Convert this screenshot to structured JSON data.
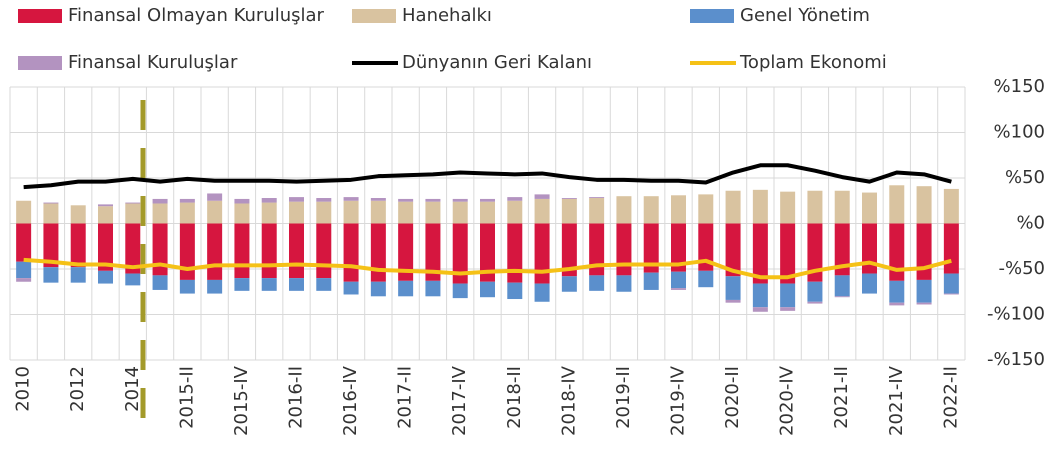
{
  "chart_data": {
    "type": "bar",
    "categories": [
      "2010",
      null,
      "2012",
      null,
      "2014",
      null,
      "2015-II",
      null,
      "2015-IV",
      null,
      "2016-II",
      null,
      "2016-IV",
      null,
      "2017-II",
      null,
      "2017-IV",
      null,
      "2018-II",
      null,
      "2018-IV",
      null,
      "2019-II",
      null,
      "2019-IV",
      null,
      "2020-II",
      null,
      "2020-IV",
      null,
      "2021-II",
      null,
      "2021-IV",
      null,
      "2022-II"
    ],
    "series": [
      {
        "name": "Finansal Olmayan Kuruluşlar",
        "type": "bar",
        "color": "#d6163f",
        "values": [
          -42,
          -48,
          -48,
          -52,
          -55,
          -57,
          -62,
          -62,
          -60,
          -60,
          -60,
          -60,
          -64,
          -64,
          -63,
          -63,
          -66,
          -64,
          -65,
          -66,
          -58,
          -57,
          -57,
          -54,
          -53,
          -52,
          -58,
          -66,
          -66,
          -64,
          -57,
          -55,
          -63,
          -62,
          -55
        ]
      },
      {
        "name": "Hanehalkı",
        "type": "bar",
        "color": "#d9c3a0",
        "values": [
          25,
          22,
          20,
          19,
          22,
          22,
          23,
          25,
          22,
          23,
          24,
          24,
          25,
          25,
          24,
          24,
          24,
          24,
          25,
          27,
          27,
          28,
          30,
          30,
          31,
          32,
          36,
          37,
          35,
          36,
          36,
          34,
          42,
          41,
          38
        ]
      },
      {
        "name": "Genel Yönetim",
        "type": "bar",
        "color": "#5b8fcc",
        "values": [
          -18,
          -17,
          -17,
          -14,
          -13,
          -16,
          -15,
          -15,
          -14,
          -14,
          -14,
          -14,
          -14,
          -16,
          -17,
          -17,
          -16,
          -17,
          -18,
          -20,
          -17,
          -17,
          -18,
          -19,
          -18,
          -18,
          -26,
          -26,
          -26,
          -22,
          -23,
          -22,
          -24,
          -25,
          -22
        ]
      },
      {
        "name": "Finansal Kuruluşlar",
        "type": "bar",
        "color": "#b393c0",
        "values": [
          -4,
          1,
          0,
          2,
          1,
          5,
          4,
          8,
          5,
          5,
          5,
          4,
          4,
          3,
          3,
          3,
          3,
          3,
          4,
          5,
          1,
          1,
          0,
          0,
          -2,
          0,
          -3,
          -5,
          -4,
          -2,
          -1,
          0,
          -3,
          -2,
          -1
        ]
      },
      {
        "name": "Dünyanın Geri Kalanı",
        "type": "line",
        "color": "#000000",
        "values": [
          40,
          42,
          46,
          46,
          49,
          46,
          49,
          47,
          47,
          47,
          46,
          47,
          48,
          52,
          53,
          54,
          56,
          55,
          54,
          55,
          51,
          48,
          48,
          47,
          47,
          45,
          56,
          64,
          64,
          58,
          51,
          46,
          56,
          54,
          46
        ]
      },
      {
        "name": "Toplam Ekonomi",
        "type": "line",
        "color": "#f5c116",
        "values": [
          -40,
          -42,
          -45,
          -45,
          -48,
          -45,
          -50,
          -46,
          -46,
          -46,
          -45,
          -46,
          -47,
          -51,
          -52,
          -53,
          -55,
          -53,
          -52,
          -53,
          -50,
          -46,
          -45,
          -45,
          -45,
          -41,
          -52,
          -59,
          -59,
          -52,
          -47,
          -43,
          -51,
          -49,
          -41
        ]
      }
    ],
    "ylim": [
      -150,
      150
    ],
    "yticks": [
      {
        "value": -150,
        "label": "-%150"
      },
      {
        "value": -100,
        "label": "-%100"
      },
      {
        "value": -50,
        "label": "-%50"
      },
      {
        "value": 0,
        "label": "%0"
      },
      {
        "value": 50,
        "label": "%50"
      },
      {
        "value": 100,
        "label": "%100"
      },
      {
        "value": 150,
        "label": "%150"
      }
    ],
    "grid": true
  }
}
